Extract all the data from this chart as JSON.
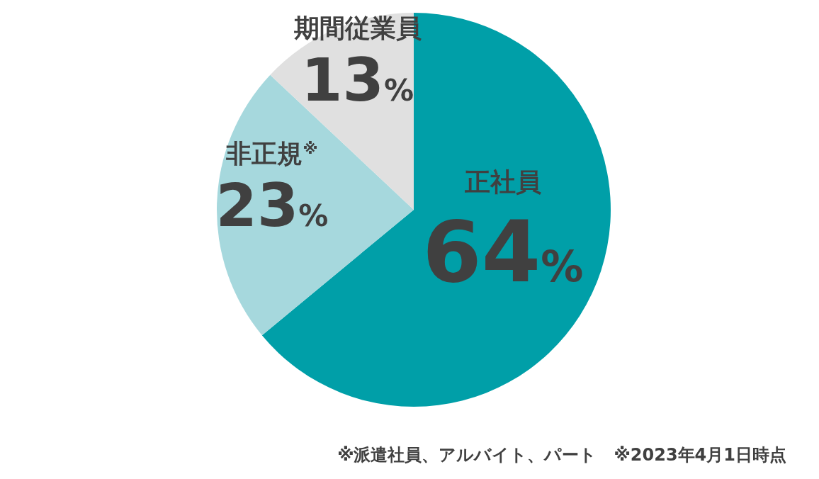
{
  "chart_data": {
    "type": "pie",
    "categories": [
      "正社員",
      "非正規$^{※}$",
      "期間従業員"
    ],
    "values": [
      64,
      23,
      13
    ],
    "colors": [
      "#009fa8",
      "#a6d8dd",
      "#e0e0e0"
    ],
    "value_labels": [
      "64%",
      "23%",
      "13%"
    ],
    "annotations": [
      "※派遣社員、アルバイト、パート　※2023年4月1日時点"
    ]
  }
}
